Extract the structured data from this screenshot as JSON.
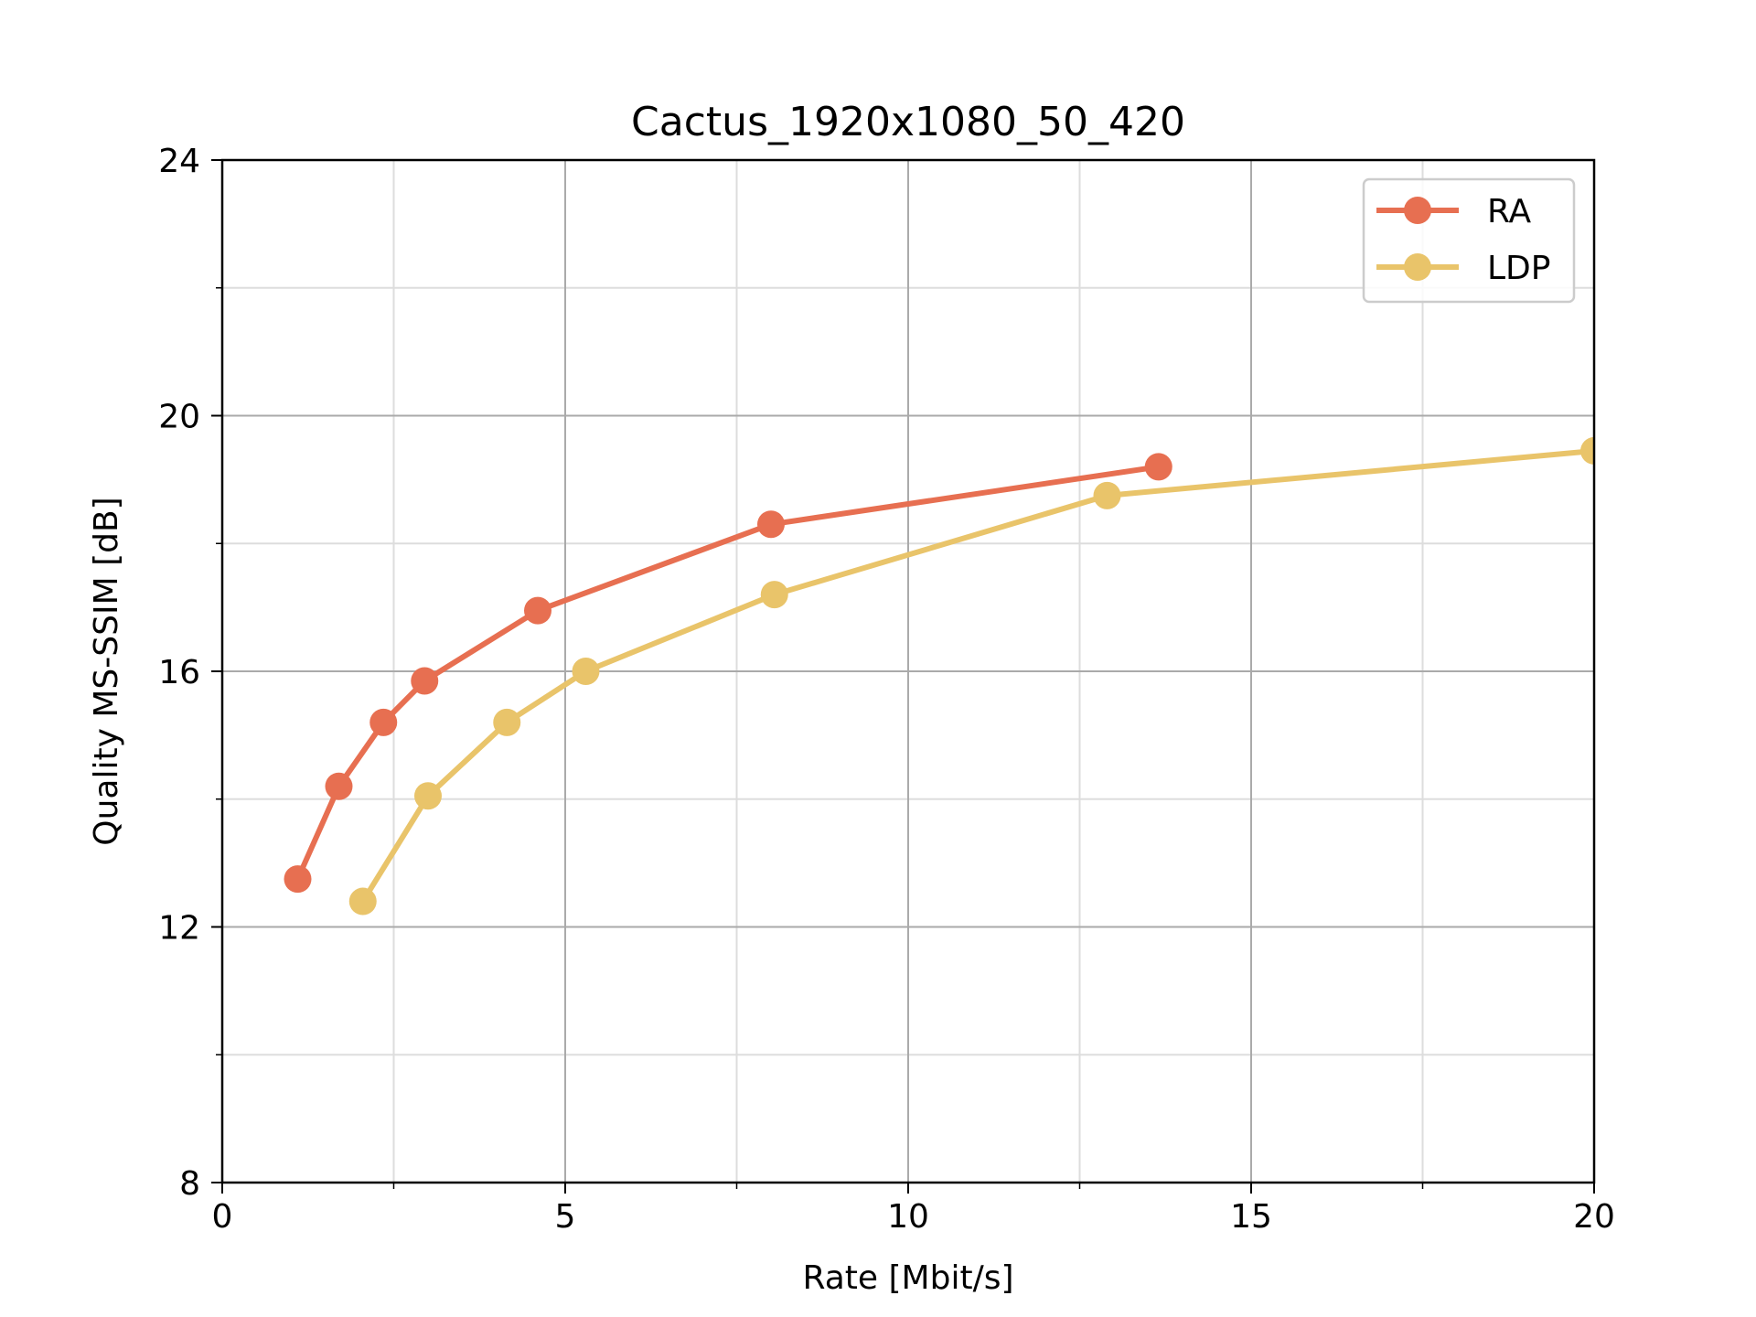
{
  "chart_data": {
    "type": "line",
    "title": "Cactus_1920x1080_50_420",
    "xlabel": "Rate [Mbit/s]",
    "ylabel": "Quality MS-SSIM [dB]",
    "xlim": [
      0,
      20
    ],
    "ylim": [
      8,
      24
    ],
    "xticks": [
      0,
      5,
      10,
      15,
      20
    ],
    "yticks": [
      8,
      12,
      16,
      20,
      24
    ],
    "x_minor_ticks": [
      2.5,
      7.5,
      12.5,
      17.5
    ],
    "y_minor_ticks": [
      10,
      14,
      18,
      22
    ],
    "grid": true,
    "legend_position": "top-right",
    "series": [
      {
        "name": "RA",
        "color": "#e76f51",
        "x": [
          1.1,
          1.7,
          2.35,
          2.95,
          4.6,
          8.0,
          13.65
        ],
        "y": [
          12.75,
          14.2,
          15.2,
          15.85,
          16.95,
          18.3,
          19.2
        ]
      },
      {
        "name": "LDP",
        "color": "#e9c46a",
        "x": [
          2.05,
          3.0,
          4.15,
          5.3,
          8.05,
          12.9,
          20.0
        ],
        "y": [
          12.4,
          14.05,
          15.2,
          16.0,
          17.2,
          18.75,
          19.45
        ]
      }
    ]
  }
}
